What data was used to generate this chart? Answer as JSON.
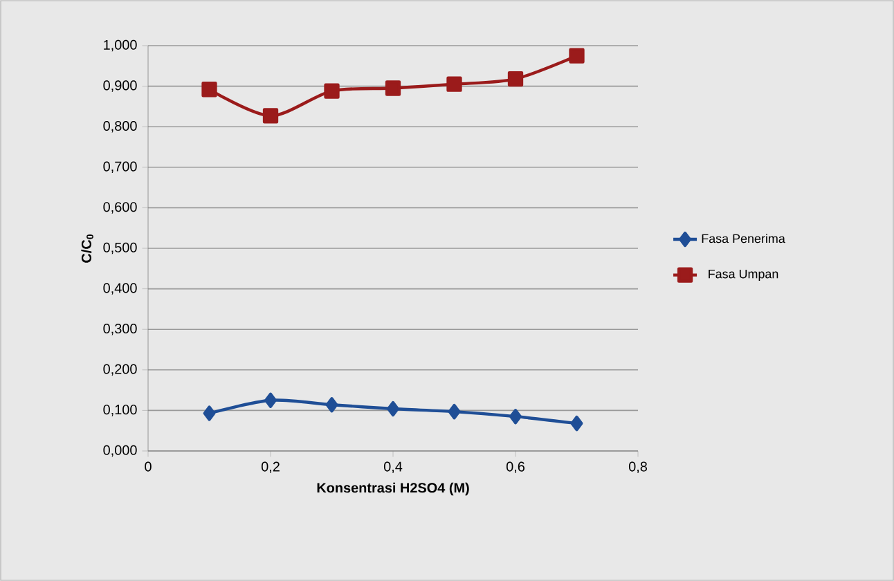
{
  "chart_data": {
    "type": "line",
    "xlabel": "Konsentrasi H2SO4 (M)",
    "ylabel": "C/C$_{0}$",
    "x": [
      0.1,
      0.2,
      0.3,
      0.4,
      0.5,
      0.6,
      0.7
    ],
    "series": [
      {
        "name": "Fasa Penerima",
        "color": "#1f4e96",
        "marker": "diamond",
        "values": [
          0.093,
          0.125,
          0.114,
          0.104,
          0.097,
          0.085,
          0.068
        ]
      },
      {
        "name": "Fasa Umpan",
        "color": "#9b1b1b",
        "marker": "square",
        "values": [
          0.892,
          0.827,
          0.888,
          0.895,
          0.905,
          0.918,
          0.975
        ]
      }
    ],
    "xlim": [
      0,
      0.8
    ],
    "xticks": [
      {
        "value": 0,
        "label": "0"
      },
      {
        "value": 0.2,
        "label": "0,2"
      },
      {
        "value": 0.4,
        "label": "0,4"
      },
      {
        "value": 0.6,
        "label": "0,6"
      },
      {
        "value": 0.8,
        "label": "0,8"
      }
    ],
    "ylim": [
      0,
      1
    ],
    "yticks": [
      {
        "value": 0,
        "label": "0,000"
      },
      {
        "value": 0.1,
        "label": "0,100"
      },
      {
        "value": 0.2,
        "label": "0,200"
      },
      {
        "value": 0.3,
        "label": "0,300"
      },
      {
        "value": 0.4,
        "label": "0,400"
      },
      {
        "value": 0.5,
        "label": "0,500"
      },
      {
        "value": 0.6,
        "label": "0,600"
      },
      {
        "value": 0.7,
        "label": "0,700"
      },
      {
        "value": 0.8,
        "label": "0,800"
      },
      {
        "value": 0.9,
        "label": "0,900"
      },
      {
        "value": 1,
        "label": "1,000"
      }
    ],
    "grid": "y",
    "legend": "right"
  }
}
